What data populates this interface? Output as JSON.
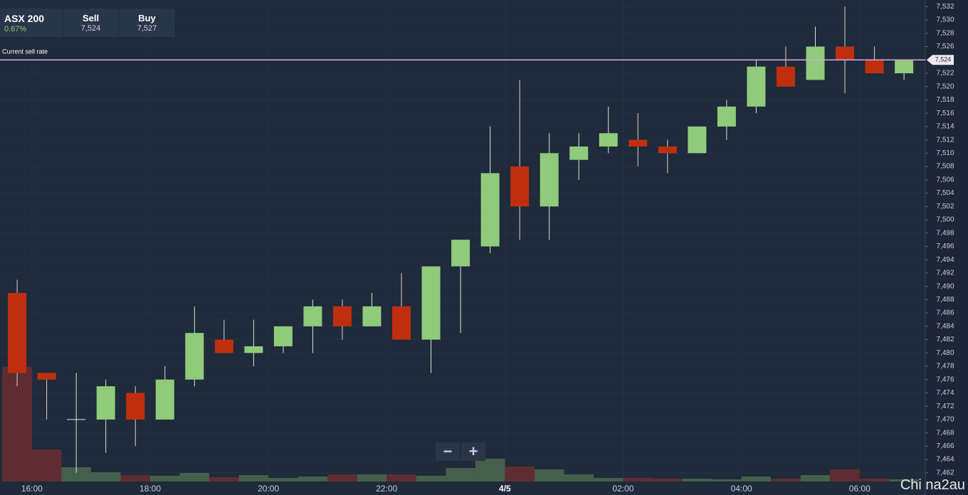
{
  "header": {
    "symbol": "ASX 200",
    "change": "0.67%",
    "sell_label": "Sell",
    "sell": "7,524",
    "buy_label": "Buy",
    "buy": "7,527"
  },
  "zoom": {
    "out": "−",
    "in": "+"
  },
  "watermark": "Chi na2au",
  "chart_data": {
    "type": "candlestick",
    "open": [
      7489,
      7477,
      7470,
      7470,
      7474,
      7470,
      7476,
      7482,
      7480,
      7481,
      7484,
      7487,
      7484,
      7487,
      7482,
      7493,
      7496,
      7508,
      7502,
      7509,
      7511,
      7512,
      7511,
      7510,
      7514,
      7517,
      7523,
      7521,
      7526,
      7524,
      7522
    ],
    "high": [
      7491,
      7477,
      7477,
      7476,
      7475,
      7478,
      7487,
      7485,
      7485,
      7484,
      7488,
      7488,
      7489,
      7492,
      7493,
      7497,
      7514,
      7521,
      7513,
      7513,
      7517,
      7516,
      7512,
      7514,
      7518,
      7524,
      7526,
      7529,
      7532,
      7526,
      7524
    ],
    "low": [
      7475,
      7470,
      7462,
      7465,
      7466,
      7470,
      7475,
      7480,
      7478,
      7480,
      7480,
      7482,
      7484,
      7482,
      7477,
      7483,
      7495,
      7497,
      7497,
      7506,
      7510,
      7508,
      7507,
      7510,
      7512,
      7516,
      7520,
      7521,
      7519,
      7522,
      7521
    ],
    "close": [
      7477,
      7476,
      7470,
      7475,
      7470,
      7476,
      7483,
      7480,
      7481,
      7484,
      7487,
      7484,
      7487,
      7482,
      7493,
      7497,
      7507,
      7502,
      7510,
      7511,
      7513,
      7511,
      7510,
      7514,
      7517,
      7523,
      7520,
      7526,
      7524,
      7522,
      7524
    ],
    "volume": [
      161,
      45,
      20,
      13,
      9,
      8,
      12,
      6,
      9,
      5,
      7,
      10,
      10,
      10,
      8,
      19,
      32,
      21,
      17,
      10,
      5,
      5,
      4,
      4,
      3,
      7,
      4,
      9,
      17,
      4,
      3
    ],
    "up_color": "#8fcb7b",
    "down_color": "#bf2f0e",
    "volume_up_color": "#4b6a4e",
    "volume_down_color": "#6a2e30",
    "volume_lim": [
      0,
      200
    ],
    "ylim": [
      7460.7,
      7533
    ],
    "yticks": [
      {
        "value": 7462,
        "label": "7,462"
      },
      {
        "value": 7464,
        "label": "7,464"
      },
      {
        "value": 7466,
        "label": "7,466"
      },
      {
        "value": 7468,
        "label": "7,468"
      },
      {
        "value": 7470,
        "label": "7,470"
      },
      {
        "value": 7472,
        "label": "7,472"
      },
      {
        "value": 7474,
        "label": "7,474"
      },
      {
        "value": 7476,
        "label": "7,476"
      },
      {
        "value": 7478,
        "label": "7,478"
      },
      {
        "value": 7480,
        "label": "7,480"
      },
      {
        "value": 7482,
        "label": "7,482"
      },
      {
        "value": 7484,
        "label": "7,484"
      },
      {
        "value": 7486,
        "label": "7,486"
      },
      {
        "value": 7488,
        "label": "7,488"
      },
      {
        "value": 7490,
        "label": "7,490"
      },
      {
        "value": 7492,
        "label": "7,492"
      },
      {
        "value": 7494,
        "label": "7,494"
      },
      {
        "value": 7496,
        "label": "7,496"
      },
      {
        "value": 7498,
        "label": "7,498"
      },
      {
        "value": 7500,
        "label": "7,500"
      },
      {
        "value": 7502,
        "label": "7,502"
      },
      {
        "value": 7504,
        "label": "7,504"
      },
      {
        "value": 7506,
        "label": "7,506"
      },
      {
        "value": 7508,
        "label": "7,508"
      },
      {
        "value": 7510,
        "label": "7,510"
      },
      {
        "value": 7512,
        "label": "7,512"
      },
      {
        "value": 7514,
        "label": "7,514"
      },
      {
        "value": 7516,
        "label": "7,516"
      },
      {
        "value": 7518,
        "label": "7,518"
      },
      {
        "value": 7520,
        "label": "7,520"
      },
      {
        "value": 7522,
        "label": "7,522"
      },
      {
        "value": 7524,
        "label": "7,524"
      },
      {
        "value": 7526,
        "label": "7,526"
      },
      {
        "value": 7528,
        "label": "7,528"
      },
      {
        "value": 7530,
        "label": "7,530"
      },
      {
        "value": 7532,
        "label": "7,532"
      }
    ],
    "xlim": [
      -0.58,
      30.72
    ],
    "xticks": [
      {
        "value": 0.5,
        "label": "16:00"
      },
      {
        "value": 4.5,
        "label": "18:00"
      },
      {
        "value": 8.5,
        "label": "20:00"
      },
      {
        "value": 12.5,
        "label": "22:00"
      },
      {
        "value": 16.5,
        "label": "4/5"
      },
      {
        "value": 20.5,
        "label": "02:00"
      },
      {
        "value": 24.5,
        "label": "04:00"
      },
      {
        "value": 28.5,
        "label": "06:00"
      }
    ],
    "grid": true,
    "current_rate": {
      "label": "Current sell rate",
      "value": 7524,
      "value_label": "7,524",
      "color": "#d9a6e0"
    }
  }
}
